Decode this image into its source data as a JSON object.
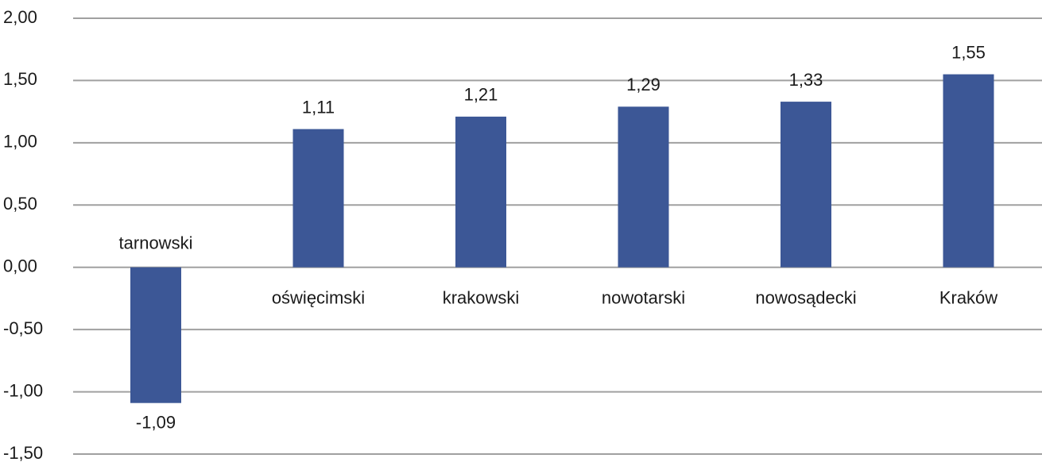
{
  "chart_data": {
    "type": "bar",
    "categories": [
      "tarnowski",
      "oświęcimski",
      "krakowski",
      "nowotarski",
      "nowosądecki",
      "Kraków"
    ],
    "values": [
      -1.09,
      1.11,
      1.21,
      1.29,
      1.33,
      1.55
    ],
    "value_labels": [
      "-1,09",
      "1,11",
      "1,21",
      "1,29",
      "1,33",
      "1,55"
    ],
    "color": "#3c5796",
    "ylim": [
      -1.5,
      2.0
    ],
    "yticks": [
      {
        "value": -1.5,
        "label": "-1,50"
      },
      {
        "value": -1.0,
        "label": "-1,00"
      },
      {
        "value": -0.5,
        "label": "-0,50"
      },
      {
        "value": 0,
        "label": "0,00"
      },
      {
        "value": 0.5,
        "label": "0,50"
      },
      {
        "value": 1.0,
        "label": "1,00"
      },
      {
        "value": 1.5,
        "label": "1,50"
      },
      {
        "value": 2.0,
        "label": "2,00"
      }
    ],
    "grid": true
  }
}
